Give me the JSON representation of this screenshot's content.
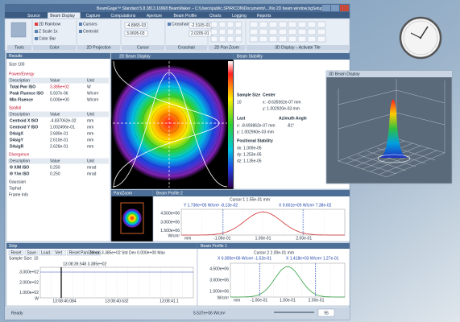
{
  "window": {
    "title": "BeamGage™ Standard 5.8.3813.16968 BeamMaker – C:\\Users\\public.SPIRICON\\Documents\\...\\No 2D beam window.bgSetup"
  },
  "tabs": [
    "Source",
    "Beam Display",
    "Capture",
    "Computations",
    "Aperture",
    "Beam Profile",
    "Charts",
    "Logging",
    "Reports"
  ],
  "ribbon": {
    "groups": [
      "Tools",
      "Color",
      "2D Projection",
      "Cursor",
      "Crosshair",
      "2D Pan Zoom",
      "3D Display – Activate Tile"
    ],
    "items": [
      "2D Rainbow",
      "Z Scale 1x",
      "Color Bar",
      "Cursors",
      "Centroid",
      "Crosshair"
    ],
    "fields": [
      "-4.8965-03",
      "3.0605-03",
      "-2.5105-01",
      "2.0205-01"
    ]
  },
  "results": {
    "title": "Results",
    "size": "Size 100",
    "sections": [
      {
        "name": "Power/Energy",
        "headers": [
          "Description",
          "Value",
          "Unit"
        ],
        "rows": [
          [
            "Total Pwr ISO",
            "3.385e+02",
            "W"
          ],
          [
            "Peak Fluence ISO",
            "5.937e-06",
            "W/cm²"
          ],
          [
            "Min Fluence",
            "0.000e+00",
            "W/cm²"
          ]
        ]
      },
      {
        "name": "Spatial",
        "headers": [
          "Description",
          "Value",
          "Unit"
        ],
        "rows": [
          [
            "Centroid X ISO",
            "-4.837062e-02",
            "mm"
          ],
          [
            "Centroid Y ISO",
            "1.002496e-01",
            "mm"
          ],
          [
            "D4sigX",
            "2.680e-01",
            "mm"
          ],
          [
            "D4sigY",
            "2.610e-01",
            "mm"
          ],
          [
            "D4sigR",
            "2.626e-01",
            "mm"
          ]
        ]
      },
      {
        "name": "Divergence",
        "headers": [
          "Description",
          "Value",
          "Unit"
        ],
        "rows": [
          [
            "Θ X/M ISO",
            "0.250",
            "mrad"
          ],
          [
            "Θ Y/m ISO",
            "0.250",
            "mrad"
          ]
        ]
      }
    ],
    "collapsed": [
      "Gaussian",
      "Tophat",
      "Frame Info"
    ]
  },
  "panels": {
    "beam_display": "2D Beam Display",
    "stability": "Beam Stability",
    "view3d": "3D Beam Display",
    "panzoom": "Pan/Zoom",
    "profile2": "Beam Profile 2",
    "profile1": "Beam Profile 1",
    "strip": "Strip"
  },
  "stability": {
    "sample_size_label": "Sample Size",
    "sample_size": "10",
    "center_label": "Center",
    "x": "x: -8.635562e-07 mm",
    "y": "y: 1.002920e-03 mm",
    "last": "Last",
    "azimuth": "Azimuth Angle",
    "last_x": "x: -8.693862e-07 mm",
    "azimuth_val": "-81°",
    "last_y": "y: 1.002960e-03 mm",
    "positional": "Positional Stability",
    "dx": "dx: 1.009e-05",
    "dy": "dy: 1.253e-05",
    "dz": "dz: 1.135e-05"
  },
  "profile2": {
    "cursor": "Cursor 1 1.55e-01 mm",
    "left": "Y 1.736e+05 W/cm² -8.13e-02",
    "right": "X 9.601e+05 W/cm² 7.38e-02",
    "yticks": [
      "4.500e+06",
      "3.000e+06",
      "1.500e+06"
    ],
    "yunit": "W/cm²",
    "xticks": [
      "-1.06e-01",
      "1.00e-01",
      "2.00e-01"
    ],
    "xunit": "mm"
  },
  "profile1": {
    "cursor": "Cursor 2 2.00e-01 mm",
    "left": "X 6.000e+06 W/cm² -1.52e-01",
    "right": "X 1.418e+03 W/cm² 1.27e-01",
    "yticks": [
      "4.500e+06",
      "3.000e+06",
      "1.500e+06"
    ],
    "yunit": "W/cm²",
    "xticks": [
      "-1.00e-01",
      "1.00e-01",
      "2.00e-01"
    ],
    "xunit": "mm"
  },
  "strip": {
    "buttons": [
      "Reset",
      "Save",
      "Load",
      "Vert",
      "Reset Pan/Zoom"
    ],
    "stats": "Mean 3.385e+02 Std Dev 0.000e+00 Max",
    "sample": "Sample Size: 10",
    "cursor": "13:08:39.548 3.385e+02",
    "yticks": [
      "3.000e+02",
      "2.000e+02",
      "1.000e+02"
    ],
    "yunit": "W",
    "xticks": [
      "13:08:40.084",
      "13:08:40.632",
      "13:08:41.1"
    ]
  },
  "status": {
    "left": "Ready",
    "zoom": "5.537e+06 W/cm²",
    "page": "95"
  }
}
